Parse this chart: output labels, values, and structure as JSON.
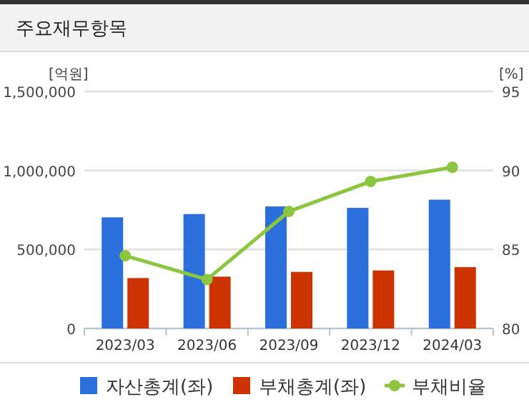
{
  "chart_data": {
    "type": "bar",
    "title": "주요재무항목",
    "categories": [
      "2023/03",
      "2023/06",
      "2023/09",
      "2023/12",
      "2024/03"
    ],
    "ylabel": "[억원]",
    "y2label": "[%]",
    "series": [
      {
        "name": "자산총계(좌)",
        "color": "#2a6fdb",
        "values": [
          703000,
          724000,
          772000,
          763000,
          815000
        ]
      },
      {
        "name": "부채총계(좌)",
        "color": "#cc3300",
        "values": [
          319000,
          328000,
          358000,
          367000,
          388000
        ]
      },
      {
        "name": "부채비율",
        "type": "line",
        "axis": "y2",
        "color": "#8cc63f",
        "values": [
          84.6,
          83.1,
          87.4,
          89.3,
          90.2
        ]
      }
    ],
    "ylim": [
      0,
      1500000
    ],
    "yticks": [
      {
        "value": 0,
        "label": "0"
      },
      {
        "value": 500000,
        "label": "500,000"
      },
      {
        "value": 1000000,
        "label": "1,000,000"
      },
      {
        "value": 1500000,
        "label": "1,500,000"
      }
    ],
    "y2lim": [
      80,
      95
    ],
    "y2ticks": [
      80,
      85,
      90,
      95
    ],
    "grid": "y",
    "legend": "bottom",
    "marker": "circle"
  }
}
